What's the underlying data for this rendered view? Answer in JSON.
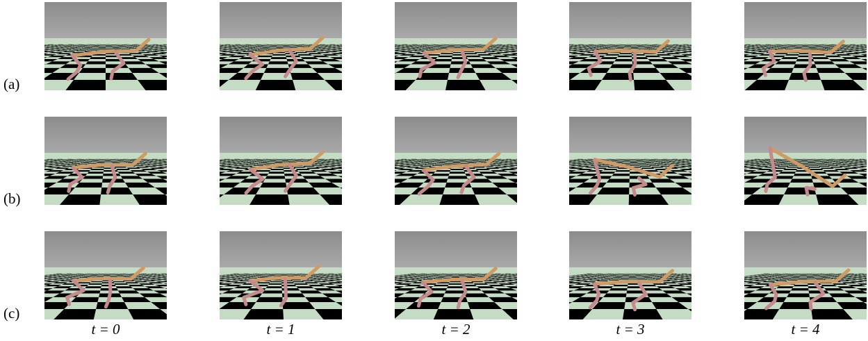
{
  "figure": {
    "row_labels": [
      "(a)",
      "(b)",
      "(c)"
    ],
    "column_labels": [
      "t = 0",
      "t = 1",
      "t = 2",
      "t = 3",
      "t = 4"
    ]
  }
}
